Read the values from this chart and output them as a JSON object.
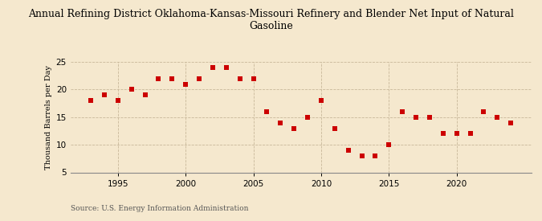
{
  "title": "Annual Refining District Oklahoma-Kansas-Missouri Refinery and Blender Net Input of Natural\nGasoline",
  "ylabel": "Thousand Barrels per Day",
  "source": "Source: U.S. Energy Information Administration",
  "background_color": "#f5e8ce",
  "plot_background_color": "#f5e8ce",
  "marker_color": "#cc0000",
  "years": [
    1993,
    1994,
    1995,
    1996,
    1997,
    1998,
    1999,
    2000,
    2001,
    2002,
    2003,
    2004,
    2005,
    2006,
    2007,
    2008,
    2009,
    2010,
    2011,
    2012,
    2013,
    2014,
    2015,
    2016,
    2017,
    2018,
    2019,
    2020,
    2021,
    2022,
    2023,
    2024
  ],
  "values": [
    18.0,
    19.0,
    18.0,
    20.0,
    19.0,
    22.0,
    22.0,
    21.0,
    22.0,
    24.0,
    24.0,
    22.0,
    22.0,
    16.0,
    14.0,
    13.0,
    15.0,
    18.0,
    13.0,
    9.0,
    8.0,
    8.0,
    10.0,
    16.0,
    15.0,
    15.0,
    12.0,
    12.0,
    12.0,
    16.0,
    15.0,
    14.0
  ],
  "xlim": [
    1991.5,
    2025.5
  ],
  "ylim": [
    5,
    25
  ],
  "yticks": [
    5,
    10,
    15,
    20,
    25
  ],
  "xticks": [
    1995,
    2000,
    2005,
    2010,
    2015,
    2020
  ],
  "title_fontsize": 9,
  "tick_fontsize": 7.5,
  "ylabel_fontsize": 7,
  "source_fontsize": 6.5,
  "marker_size": 15
}
